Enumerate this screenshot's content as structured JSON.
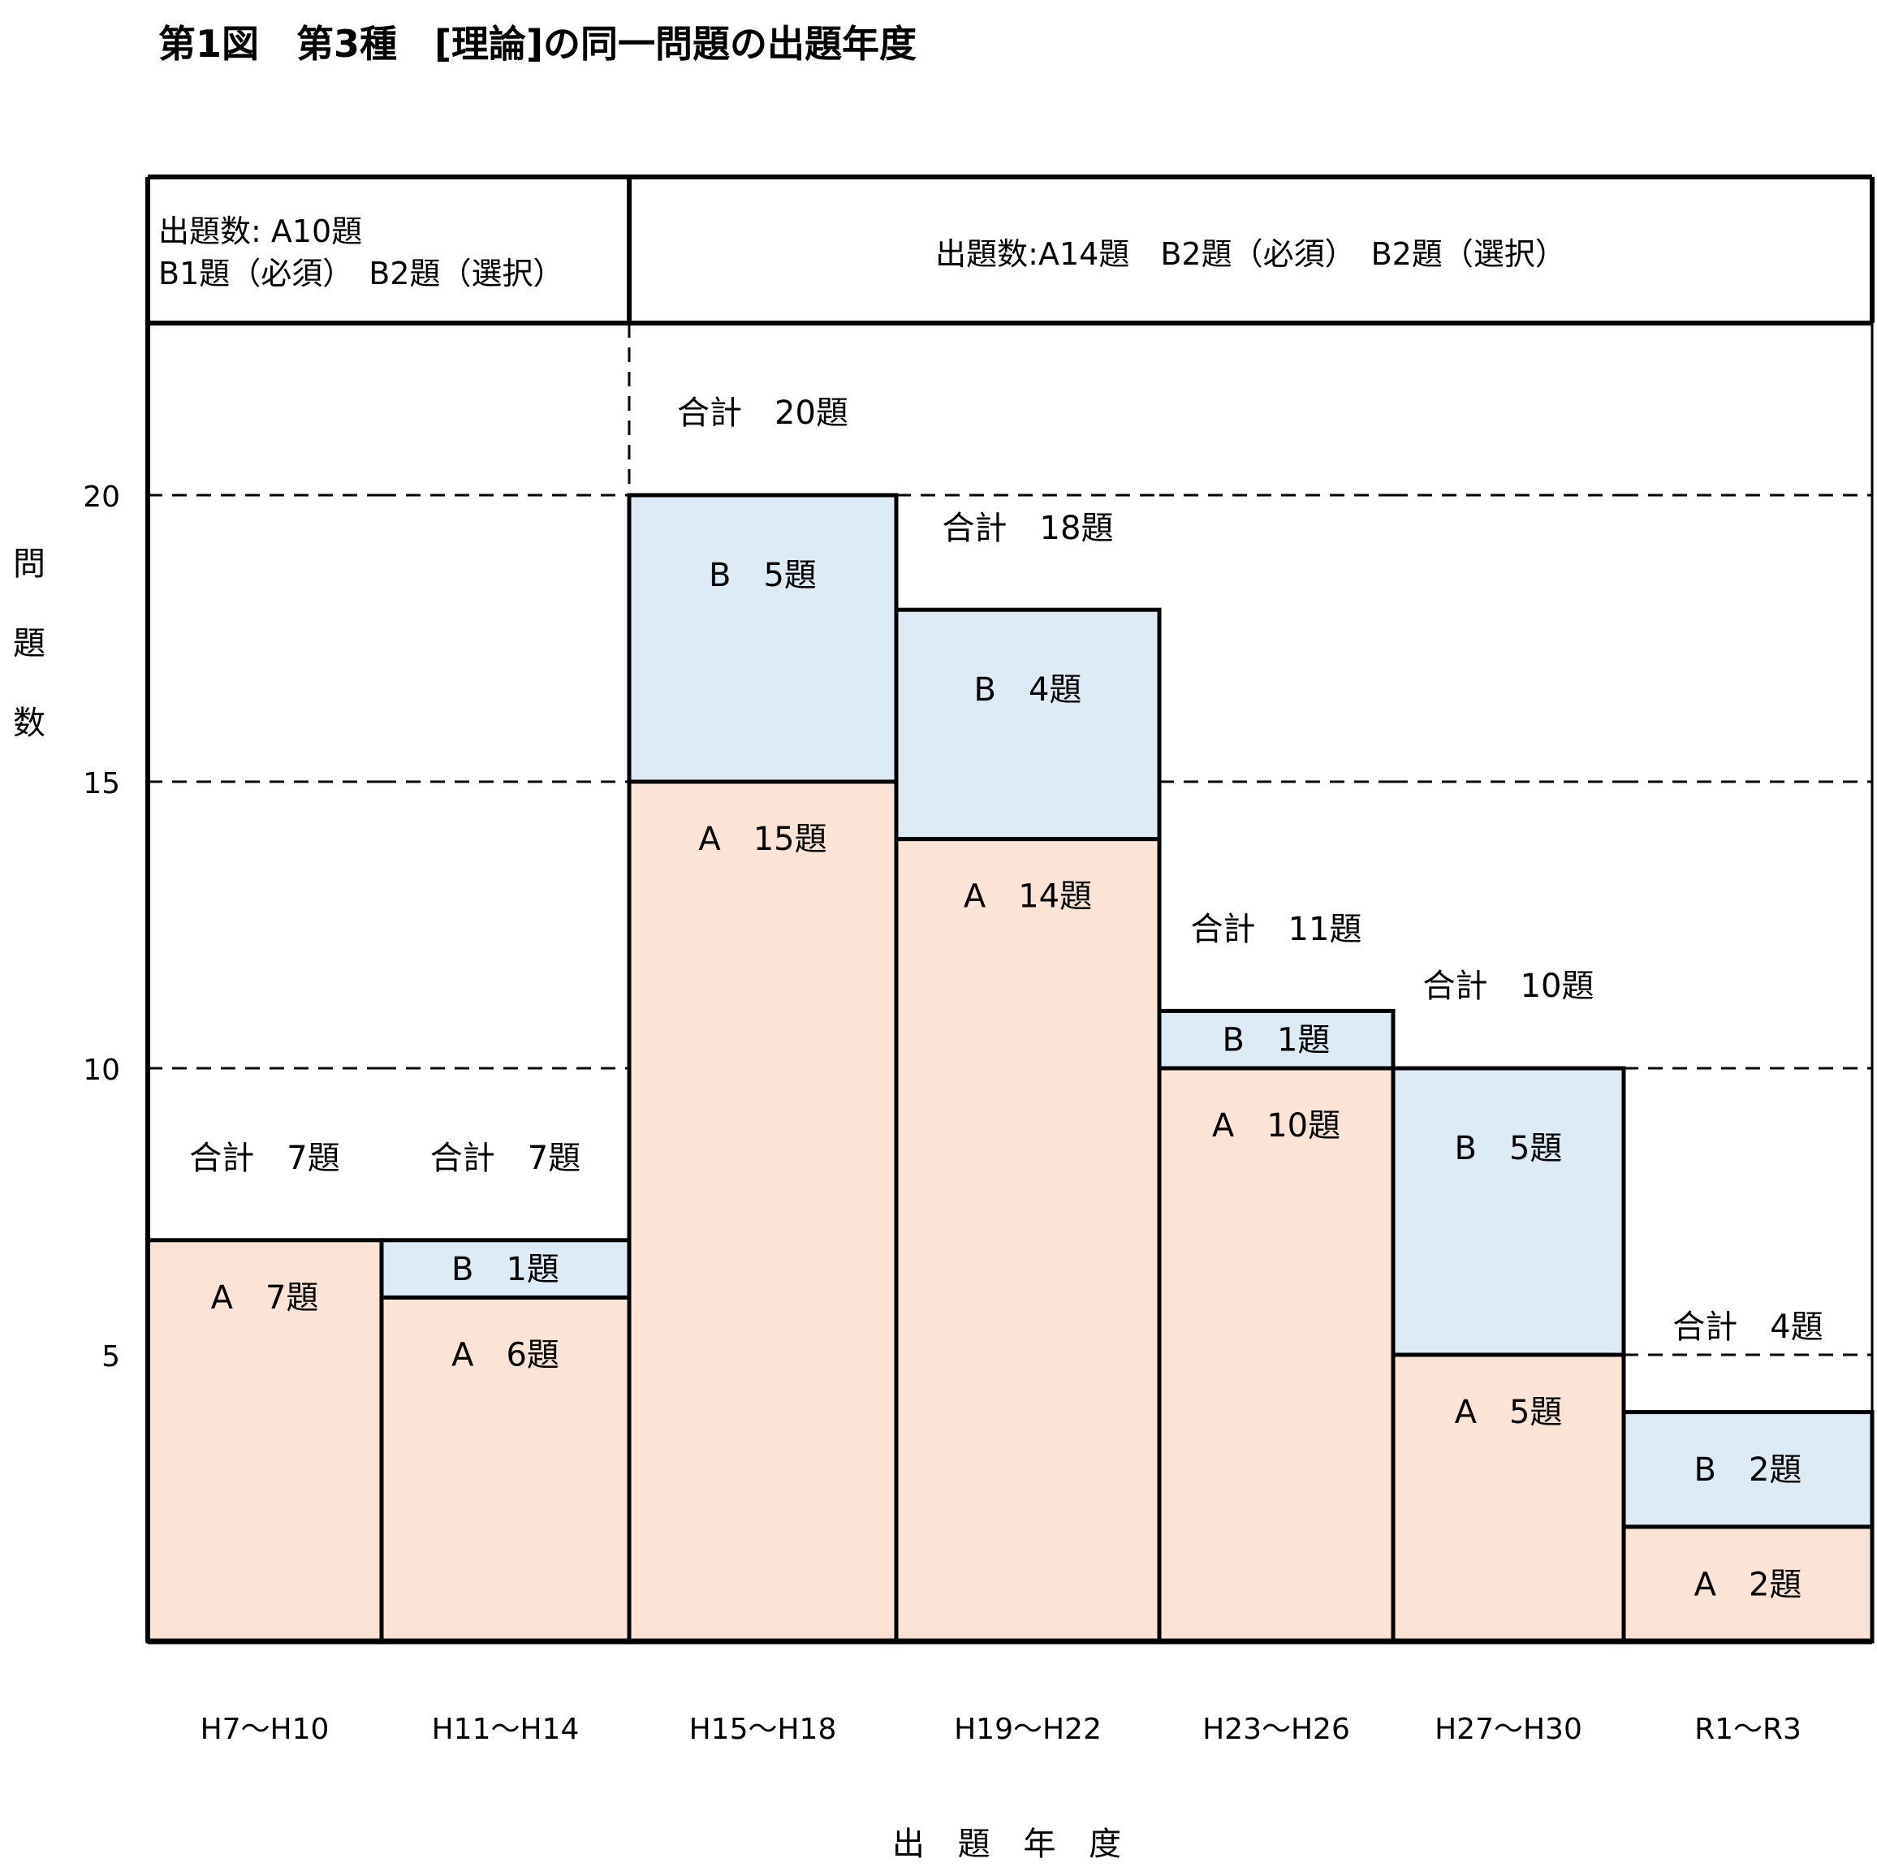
{
  "chart_data": {
    "type": "bar",
    "title": "第1図　第3種　[理論]の同一問題の出題年度",
    "xlabel": "出 題 年 度",
    "ylabel": "問題数",
    "ylim": [
      0,
      23
    ],
    "yticks": [
      5,
      10,
      15,
      20
    ],
    "grid": "dashed at 10, 15, 20",
    "categories": [
      "H7～H10",
      "H11～H14",
      "H15～H18",
      "H19～H22",
      "H23～H26",
      "H27～H30",
      "R1～R3"
    ],
    "series": [
      {
        "name": "A",
        "values": [
          7,
          6,
          15,
          14,
          10,
          5,
          2
        ],
        "color": "#fbe4d6"
      },
      {
        "name": "B",
        "values": [
          0,
          1,
          5,
          4,
          1,
          5,
          2
        ],
        "color": "#ddebf6"
      }
    ],
    "segment_labels": {
      "A": [
        "A　7題",
        "A　6題",
        "A　15題",
        "A　14題",
        "A　10題",
        "A　5題",
        "A　2題"
      ],
      "B": [
        "",
        "B　1題",
        "B　5題",
        "B　4題",
        "B　1題",
        "B　5題",
        "B　2題"
      ]
    },
    "totals": [
      7,
      7,
      20,
      18,
      11,
      10,
      4
    ],
    "total_labels": [
      "合計　7題",
      "合計　7題",
      "合計　20題",
      "合計　18題",
      "合計　11題",
      "合計　10題",
      "合計　4題"
    ],
    "periods": [
      {
        "lines": [
          "出題数: A10題",
          "B1題（必須）　B2題（選択）"
        ],
        "categories": [
          0,
          1
        ]
      },
      {
        "lines": [
          "出題数:A14題　B2題（必須）　B2題（選択）"
        ],
        "categories": [
          2,
          3,
          4,
          5,
          6
        ]
      }
    ]
  }
}
